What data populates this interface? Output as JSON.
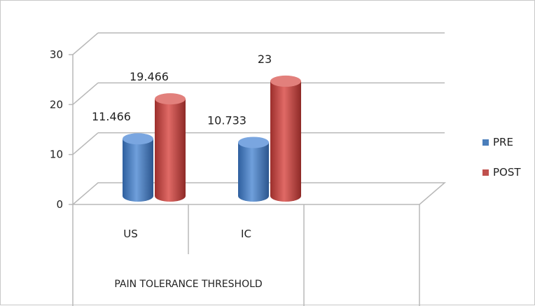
{
  "chart_data": {
    "type": "bar",
    "categories": [
      "US",
      "IC"
    ],
    "group_label": "PAIN TOLERANCE THRESHOLD",
    "series": [
      {
        "name": "PRE",
        "values": [
          11.466,
          10.733
        ],
        "labels": [
          "11.466",
          "10.733"
        ],
        "color": "#4a7ebb"
      },
      {
        "name": "POST",
        "values": [
          19.466,
          23
        ],
        "labels": [
          "19.466",
          "23"
        ],
        "color": "#c0504d"
      }
    ],
    "ylim": [
      0,
      30
    ],
    "yticks": [
      "0",
      "10",
      "20",
      "30"
    ],
    "grid": true,
    "legend_position": "right"
  }
}
